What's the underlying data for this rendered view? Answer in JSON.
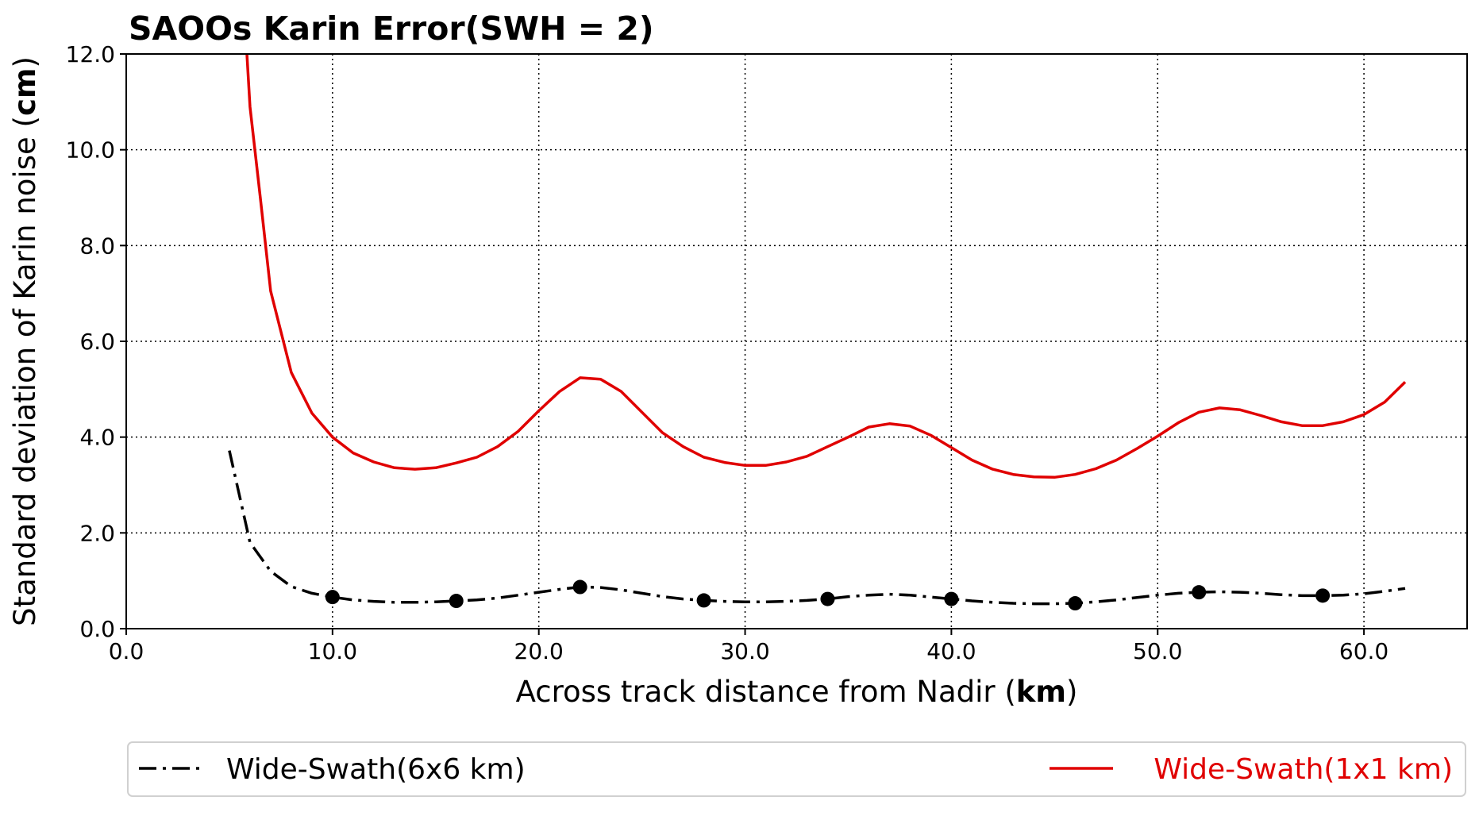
{
  "chart_data": {
    "type": "line",
    "title": "SAOOs Karin Error(SWH = 2)",
    "xlabel": {
      "prefix": "Across track distance from Nadir (",
      "bold": "km",
      "suffix": ")"
    },
    "ylabel": {
      "prefix": "Standard deviation of Karin noise (",
      "bold": "cm",
      "suffix": ")"
    },
    "xlim": [
      0,
      65
    ],
    "ylim": [
      0,
      12
    ],
    "xticks": [
      0,
      10,
      20,
      30,
      40,
      50,
      60
    ],
    "xtick_labels": [
      "0.0",
      "10.0",
      "20.0",
      "30.0",
      "40.0",
      "50.0",
      "60.0"
    ],
    "yticks": [
      0,
      2,
      4,
      6,
      8,
      10,
      12
    ],
    "ytick_labels": [
      "0.0",
      "2.0",
      "4.0",
      "6.0",
      "8.0",
      "10.0",
      "12.0"
    ],
    "grid": true,
    "legend_placement": "below",
    "series": [
      {
        "name": "Wide-Swath(6x6 km)",
        "color": "#000000",
        "line_style": "dash-dot",
        "x": [
          5,
          6,
          7,
          8,
          9,
          10,
          11,
          12,
          13,
          14,
          15,
          16,
          17,
          18,
          19,
          20,
          21,
          22,
          23,
          24,
          25,
          26,
          27,
          28,
          29,
          30,
          31,
          32,
          33,
          34,
          35,
          36,
          37,
          38,
          39,
          40,
          41,
          42,
          43,
          44,
          45,
          46,
          47,
          48,
          49,
          50,
          51,
          52,
          53,
          54,
          55,
          56,
          57,
          58,
          59,
          60,
          61,
          62
        ],
        "y": [
          3.72,
          1.8,
          1.2,
          0.88,
          0.74,
          0.66,
          0.6,
          0.57,
          0.55,
          0.55,
          0.56,
          0.58,
          0.6,
          0.64,
          0.7,
          0.76,
          0.82,
          0.87,
          0.86,
          0.81,
          0.74,
          0.67,
          0.62,
          0.59,
          0.57,
          0.56,
          0.56,
          0.57,
          0.59,
          0.62,
          0.67,
          0.7,
          0.72,
          0.7,
          0.66,
          0.62,
          0.58,
          0.55,
          0.53,
          0.52,
          0.52,
          0.53,
          0.56,
          0.6,
          0.65,
          0.7,
          0.74,
          0.76,
          0.77,
          0.76,
          0.74,
          0.71,
          0.69,
          0.69,
          0.7,
          0.73,
          0.78,
          0.84
        ],
        "marker_x": [
          10,
          16,
          22,
          28,
          34,
          40,
          46,
          52,
          58
        ],
        "marker_y": [
          0.66,
          0.58,
          0.87,
          0.59,
          0.62,
          0.62,
          0.53,
          0.76,
          0.69
        ]
      },
      {
        "name": "Wide-Swath(1x1 km)",
        "color": "#e00000",
        "line_style": "solid",
        "x": [
          5.85,
          6,
          6.5,
          7,
          8,
          9,
          10,
          11,
          12,
          13,
          14,
          15,
          16,
          17,
          18,
          19,
          20,
          21,
          22,
          23,
          24,
          25,
          26,
          27,
          28,
          29,
          30,
          31,
          32,
          33,
          34,
          35,
          36,
          37,
          38,
          39,
          40,
          41,
          42,
          43,
          44,
          45,
          46,
          47,
          48,
          49,
          50,
          51,
          52,
          53,
          54,
          55,
          56,
          57,
          58,
          59,
          60,
          61,
          62
        ],
        "y": [
          12.0,
          10.9,
          9.0,
          7.05,
          5.35,
          4.5,
          4.0,
          3.67,
          3.48,
          3.36,
          3.33,
          3.36,
          3.46,
          3.58,
          3.8,
          4.12,
          4.55,
          4.95,
          5.24,
          5.21,
          4.95,
          4.52,
          4.09,
          3.8,
          3.58,
          3.47,
          3.41,
          3.41,
          3.48,
          3.6,
          3.8,
          4.0,
          4.21,
          4.28,
          4.23,
          4.04,
          3.78,
          3.52,
          3.33,
          3.22,
          3.17,
          3.16,
          3.22,
          3.34,
          3.52,
          3.76,
          4.02,
          4.3,
          4.52,
          4.61,
          4.57,
          4.45,
          4.32,
          4.24,
          4.24,
          4.32,
          4.47,
          4.73,
          5.15
        ]
      }
    ]
  }
}
